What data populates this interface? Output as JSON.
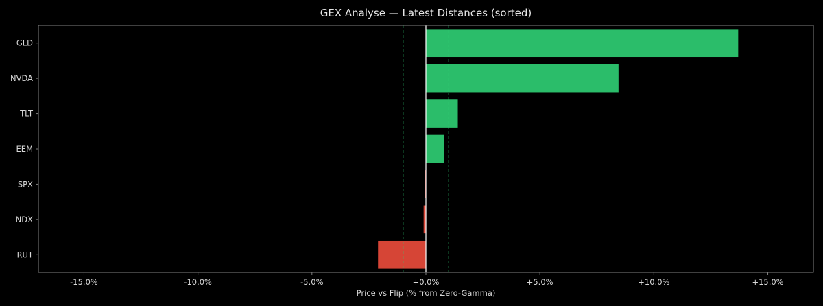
{
  "chart_data": {
    "type": "bar",
    "orientation": "horizontal",
    "title": "GEX Analyse — Latest Distances (sorted)",
    "xlabel": "Price vs Flip (% from Zero-Gamma)",
    "ylabel": "",
    "xlim": [
      -17,
      17
    ],
    "xticks": [
      -15,
      -10,
      -5,
      0,
      5,
      10,
      15
    ],
    "xtick_labels": [
      "-15.0%",
      "-10.0%",
      "-5.0%",
      "+0.0%",
      "+5.0%",
      "+10.0%",
      "+15.0%"
    ],
    "categories": [
      "GLD",
      "NVDA",
      "TLT",
      "EEM",
      "SPX",
      "NDX",
      "RUT"
    ],
    "values": [
      13.7,
      8.45,
      1.4,
      0.8,
      -0.05,
      -0.1,
      -2.1
    ],
    "reference_lines": [
      {
        "value": -1.0,
        "style": "dashed",
        "color": "#2ecc71"
      },
      {
        "value": 1.0,
        "style": "dashed",
        "color": "#2ecc71"
      },
      {
        "value": 0.0,
        "style": "solid",
        "color": "#ffffff"
      }
    ],
    "colors": {
      "positive": "#2bbd6a",
      "negative": "#d64536",
      "background": "#000000",
      "frame": "#7f7f7f",
      "text": "#d8d8d8"
    },
    "grid": false,
    "legend": "none"
  }
}
